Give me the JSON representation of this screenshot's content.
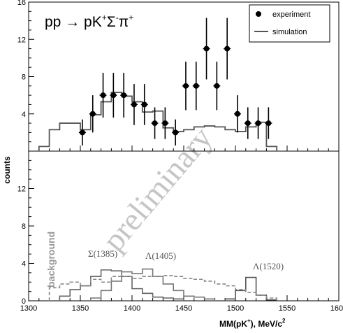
{
  "chart_data": [
    {
      "type": "histogram",
      "panel": "top",
      "title_parts": {
        "a": "pp ",
        "arrow": "→",
        "b": " pK",
        "sup1": "+",
        "c": "Σ",
        "sup2": "-",
        "d": "π",
        "sup3": "+"
      },
      "ylabel": "counts",
      "ylim": [
        0,
        16
      ],
      "yticks": [
        4,
        8,
        12,
        16
      ],
      "legend": {
        "position": "top-right",
        "experiment": "experiment",
        "simulation": "simulation"
      },
      "series": [
        {
          "name": "experiment",
          "kind": "points",
          "points": [
            {
              "x": 1352,
              "y": 2,
              "err": 1.4
            },
            {
              "x": 1362,
              "y": 4,
              "err": 2.0
            },
            {
              "x": 1372,
              "y": 6,
              "err": 2.4
            },
            {
              "x": 1382,
              "y": 6,
              "err": 2.4
            },
            {
              "x": 1392,
              "y": 6,
              "err": 2.4
            },
            {
              "x": 1402,
              "y": 5,
              "err": 2.2
            },
            {
              "x": 1412,
              "y": 5,
              "err": 2.2
            },
            {
              "x": 1422,
              "y": 3,
              "err": 1.7
            },
            {
              "x": 1432,
              "y": 3,
              "err": 1.7
            },
            {
              "x": 1442,
              "y": 2,
              "err": 1.4
            },
            {
              "x": 1452,
              "y": 7,
              "err": 2.6
            },
            {
              "x": 1462,
              "y": 7,
              "err": 2.6
            },
            {
              "x": 1472,
              "y": 11,
              "err": 3.3
            },
            {
              "x": 1482,
              "y": 7,
              "err": 2.6
            },
            {
              "x": 1492,
              "y": 11,
              "err": 3.3
            },
            {
              "x": 1502,
              "y": 4,
              "err": 2.0
            },
            {
              "x": 1512,
              "y": 3,
              "err": 1.7
            },
            {
              "x": 1522,
              "y": 3,
              "err": 1.7
            },
            {
              "x": 1532,
              "y": 3,
              "err": 1.7
            }
          ]
        },
        {
          "name": "simulation",
          "kind": "step",
          "bin_edges": [
            1310,
            1320,
            1330,
            1340,
            1350,
            1360,
            1370,
            1380,
            1390,
            1400,
            1410,
            1420,
            1430,
            1440,
            1450,
            1460,
            1470,
            1480,
            1490,
            1500,
            1510,
            1520,
            1530,
            1540
          ],
          "values": [
            0.5,
            2.3,
            3.0,
            3.0,
            2.3,
            3.9,
            5.3,
            6.3,
            5.9,
            5.3,
            4.2,
            4.3,
            2.5,
            2.1,
            2.3,
            2.6,
            2.7,
            2.6,
            2.3,
            2.1,
            2.6,
            3.1,
            0.5
          ]
        }
      ]
    },
    {
      "type": "histogram",
      "panel": "bottom",
      "xlabel_main": "MM(pK",
      "xlabel_sup": "+",
      "xlabel_unit": "),  MeV/c",
      "xlabel_unit_sup": "2",
      "ylabel": "",
      "xlim": [
        1300,
        1600
      ],
      "xticks": [
        1300,
        1350,
        1400,
        1450,
        1500,
        1550,
        1600
      ],
      "ylim": [
        0,
        16
      ],
      "yticks": [
        0,
        4,
        8,
        12
      ],
      "annotations": {
        "background": "background",
        "sigma": "Σ(1385)",
        "lambda1405": "Λ(1405)",
        "lambda1520": "Λ(1520)"
      },
      "series": [
        {
          "name": "Σ(1385)",
          "kind": "step",
          "bin_edges": [
            1330,
            1340,
            1350,
            1360,
            1370,
            1380,
            1390,
            1400,
            1410,
            1420,
            1430,
            1440,
            1450
          ],
          "values": [
            0.5,
            1.2,
            1.6,
            2.6,
            3.3,
            3.2,
            2.6,
            1.3,
            0.8,
            0.4,
            0.3,
            0.2
          ]
        },
        {
          "name": "Λ(1405)",
          "kind": "step",
          "bin_edges": [
            1360,
            1370,
            1380,
            1390,
            1400,
            1410,
            1420,
            1430,
            1440,
            1450,
            1460,
            1470,
            1480
          ],
          "values": [
            0.3,
            1.1,
            2.1,
            3.1,
            2.9,
            3.4,
            2.6,
            1.8,
            1.1,
            0.5,
            0.4,
            0.2
          ]
        },
        {
          "name": "Λ(1520)",
          "kind": "step",
          "bin_edges": [
            1490,
            1500,
            1510,
            1520,
            1530,
            1540
          ],
          "values": [
            0.2,
            1.1,
            2.5,
            0.6,
            0.1
          ]
        },
        {
          "name": "background",
          "kind": "step-dashed",
          "bin_edges": [
            1320,
            1330,
            1340,
            1350,
            1360,
            1370,
            1380,
            1390,
            1400,
            1410,
            1420,
            1430,
            1440,
            1450,
            1460,
            1470,
            1480,
            1490,
            1500,
            1510,
            1520,
            1530,
            1540
          ],
          "values": [
            1.4,
            1.8,
            2.0,
            1.6,
            2.3,
            2.0,
            2.6,
            2.6,
            2.4,
            2.6,
            2.6,
            2.7,
            2.6,
            2.4,
            2.3,
            2.1,
            1.8,
            1.6,
            1.2,
            0.9,
            0.6,
            0.3
          ]
        }
      ]
    }
  ],
  "watermark": "preliminary"
}
